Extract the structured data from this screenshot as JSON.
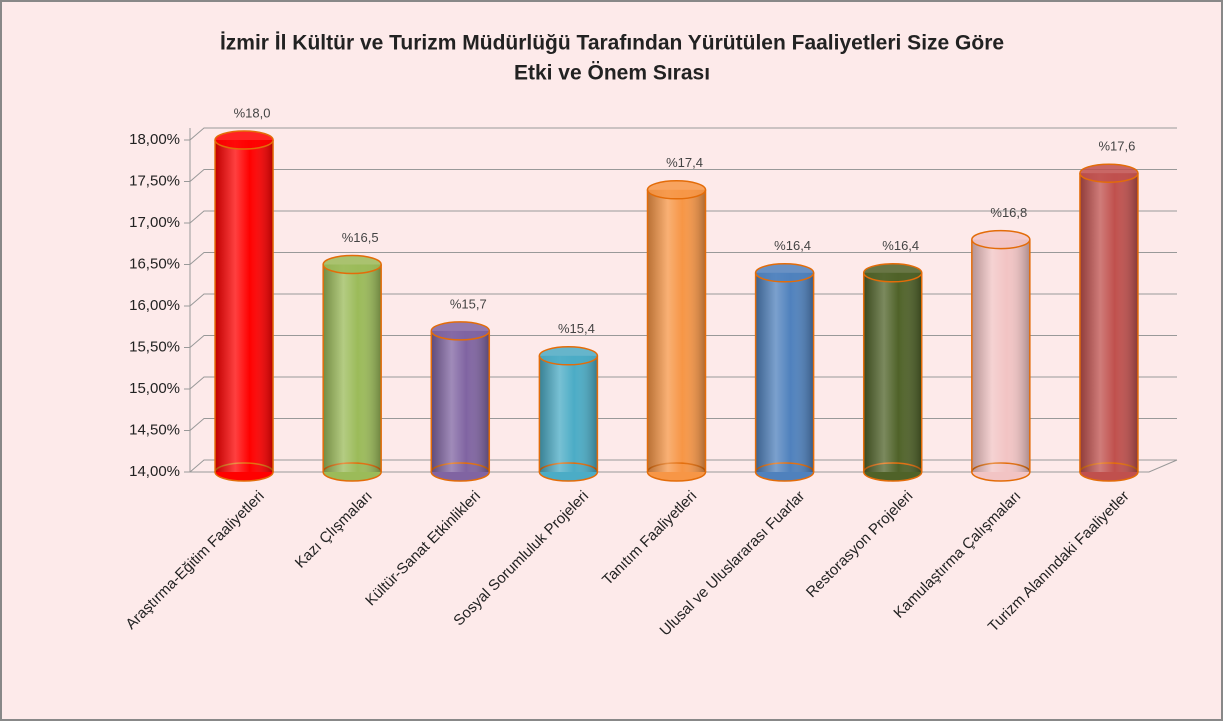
{
  "chart_data": {
    "type": "bar",
    "title": [
      "İzmir İl Kültür ve Turizm Müdürlüğü Tarafından  Yürütülen Faaliyetleri Size Göre",
      "Etki ve Önem Sırası"
    ],
    "categories": [
      "Araştırma-Eğitim Faaliyetleri",
      "Kazı Çlışmaları",
      "Kültür-Sanat Etkinlikleri",
      "Sosyal Sorumluluk Projeleri",
      "Tanıtım Faaliyetleri",
      "Ulusal ve Uluslararası Fuarlar",
      "Restorasyon Projeleri",
      "Kamulaştırma Çalışmaları",
      "Turizm Alanındaki Faaliyetler"
    ],
    "values": [
      18.0,
      16.5,
      15.7,
      15.4,
      17.4,
      16.4,
      16.4,
      16.8,
      17.6
    ],
    "value_labels": [
      "%18,0",
      "%16,5",
      "%15,7",
      "%15,4",
      "%17,4",
      "%16,4",
      "%16,4",
      "%16,8",
      "%17,6"
    ],
    "colors": [
      "#ff0000",
      "#9bbb59",
      "#8064a2",
      "#4bacc6",
      "#f79646",
      "#4f81bd",
      "#4f6228",
      "#f2c4c4",
      "#c0504d"
    ],
    "ylim": [
      14,
      18
    ],
    "yticks": [
      {
        "value": 14,
        "label": "14,00%"
      },
      {
        "value": 14.5,
        "label": "14,50%"
      },
      {
        "value": 15,
        "label": "15,00%"
      },
      {
        "value": 15.5,
        "label": "15,50%"
      },
      {
        "value": 16,
        "label": "16,00%"
      },
      {
        "value": 16.5,
        "label": "16,50%"
      },
      {
        "value": 17,
        "label": "17,00%"
      },
      {
        "value": 17.5,
        "label": "17,50%"
      },
      {
        "value": 18,
        "label": "18,00%"
      }
    ],
    "grid": true
  }
}
